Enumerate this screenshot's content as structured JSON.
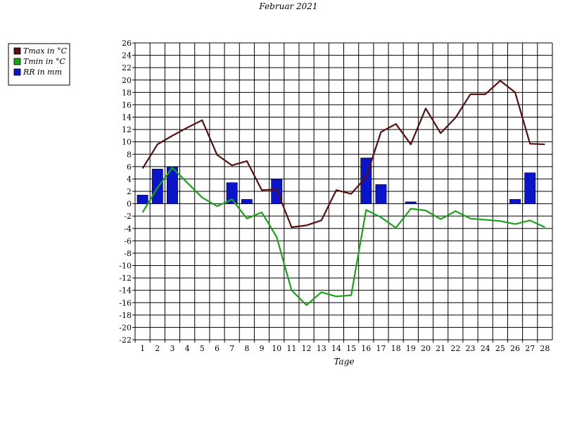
{
  "chart_data": {
    "type": "bar+line",
    "title": "Februar 2021",
    "xlabel": "Tage",
    "ylabel": "",
    "ylim": [
      -22,
      26
    ],
    "ytick_step": 2,
    "grid": true,
    "legend_position": "left",
    "categories": [
      "1",
      "2",
      "3",
      "4",
      "5",
      "6",
      "7",
      "8",
      "9",
      "10",
      "11",
      "12",
      "13",
      "14",
      "15",
      "16",
      "17",
      "18",
      "19",
      "20",
      "21",
      "22",
      "23",
      "24",
      "25",
      "26",
      "27",
      "28"
    ],
    "series": [
      {
        "name": "Tmax in °C",
        "type": "line",
        "color": "#5a0f0f",
        "values": [
          5.7,
          9.6,
          11.0,
          12.3,
          13.5,
          7.9,
          6.2,
          6.9,
          2.2,
          2.3,
          -3.8,
          -3.5,
          -2.7,
          2.2,
          1.6,
          4.3,
          11.6,
          12.9,
          9.6,
          15.4,
          11.4,
          13.9,
          17.7,
          17.7,
          19.9,
          18.0,
          9.7,
          9.6
        ]
      },
      {
        "name": "Tmin in °C",
        "type": "line",
        "color": "#1aa31a",
        "values": [
          -1.4,
          2.6,
          5.8,
          3.4,
          1.0,
          -0.4,
          0.7,
          -2.4,
          -1.4,
          -5.4,
          -14.0,
          -16.4,
          -14.3,
          -15.0,
          -14.8,
          -1.0,
          -2.2,
          -3.9,
          -0.8,
          -1.1,
          -2.5,
          -1.2,
          -2.4,
          -2.6,
          -2.8,
          -3.3,
          -2.7,
          -3.8
        ]
      },
      {
        "name": "RR in mm",
        "type": "bar",
        "color": "#0a14c8",
        "values": [
          1.4,
          5.6,
          6.0,
          0,
          0,
          0,
          3.4,
          0.7,
          0,
          4.0,
          0,
          0,
          0,
          0,
          0,
          7.4,
          3.1,
          0,
          0.3,
          0,
          0,
          0,
          0,
          0,
          0,
          0.7,
          5.0,
          0
        ]
      }
    ]
  }
}
